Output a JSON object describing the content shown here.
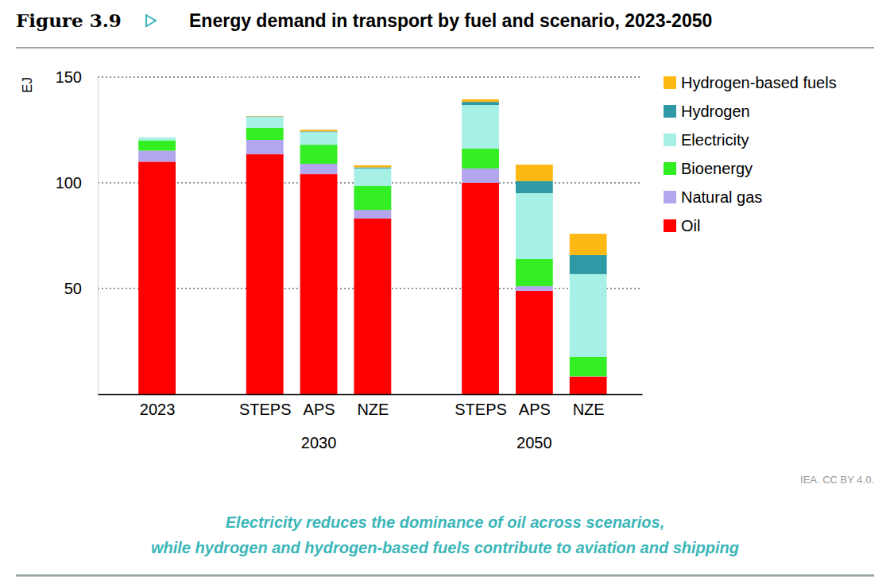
{
  "chart_data": {
    "type": "bar",
    "stacked": true,
    "grid": true,
    "legend": "right",
    "figure_number": "Figure 3.9",
    "title": "Energy demand in transport by fuel and scenario, 2023-2050",
    "y_label": "EJ",
    "categories": [
      "2023",
      "STEPS",
      "APS",
      "NZE",
      "STEPS",
      "APS",
      "NZE"
    ],
    "category_groups": [
      null,
      "2030",
      "2030",
      "2030",
      "2050",
      "2050",
      "2050"
    ],
    "ylim": [
      0,
      150
    ],
    "yticks": [
      50,
      100,
      150
    ],
    "series": [
      {
        "name": "Oil",
        "color": "#ff0000",
        "values": [
          110,
          113.5,
          104.1,
          83.1,
          100,
          48.9,
          8.3
        ]
      },
      {
        "name": "Natural gas",
        "color": "#b3a6ee",
        "values": [
          5.2,
          6.8,
          4.9,
          4.1,
          6.8,
          2.2,
          0.2
        ]
      },
      {
        "name": "Bioenergy",
        "color": "#33ee22",
        "values": [
          4.9,
          5.7,
          9,
          11.3,
          9.4,
          12.8,
          9.2
        ]
      },
      {
        "name": "Electricity",
        "color": "#a6f0e6",
        "values": [
          1.4,
          5.2,
          6,
          8.3,
          20.6,
          31.2,
          39.1
        ]
      },
      {
        "name": "Hydrogen",
        "color": "#2e9aa6",
        "values": [
          0,
          0.2,
          0.3,
          0.5,
          1.5,
          5.7,
          9
        ]
      },
      {
        "name": "Hydrogen-based fuels",
        "color": "#fdb813",
        "values": [
          0,
          0.2,
          0.8,
          1,
          1.2,
          7.8,
          10.1
        ]
      }
    ],
    "caption": [
      "Electricity reduces the dominance of oil across scenarios,",
      "while hydrogen and hydrogen-based fuels contribute to aviation and shipping"
    ],
    "source": "IEA. CC BY 4.0."
  }
}
